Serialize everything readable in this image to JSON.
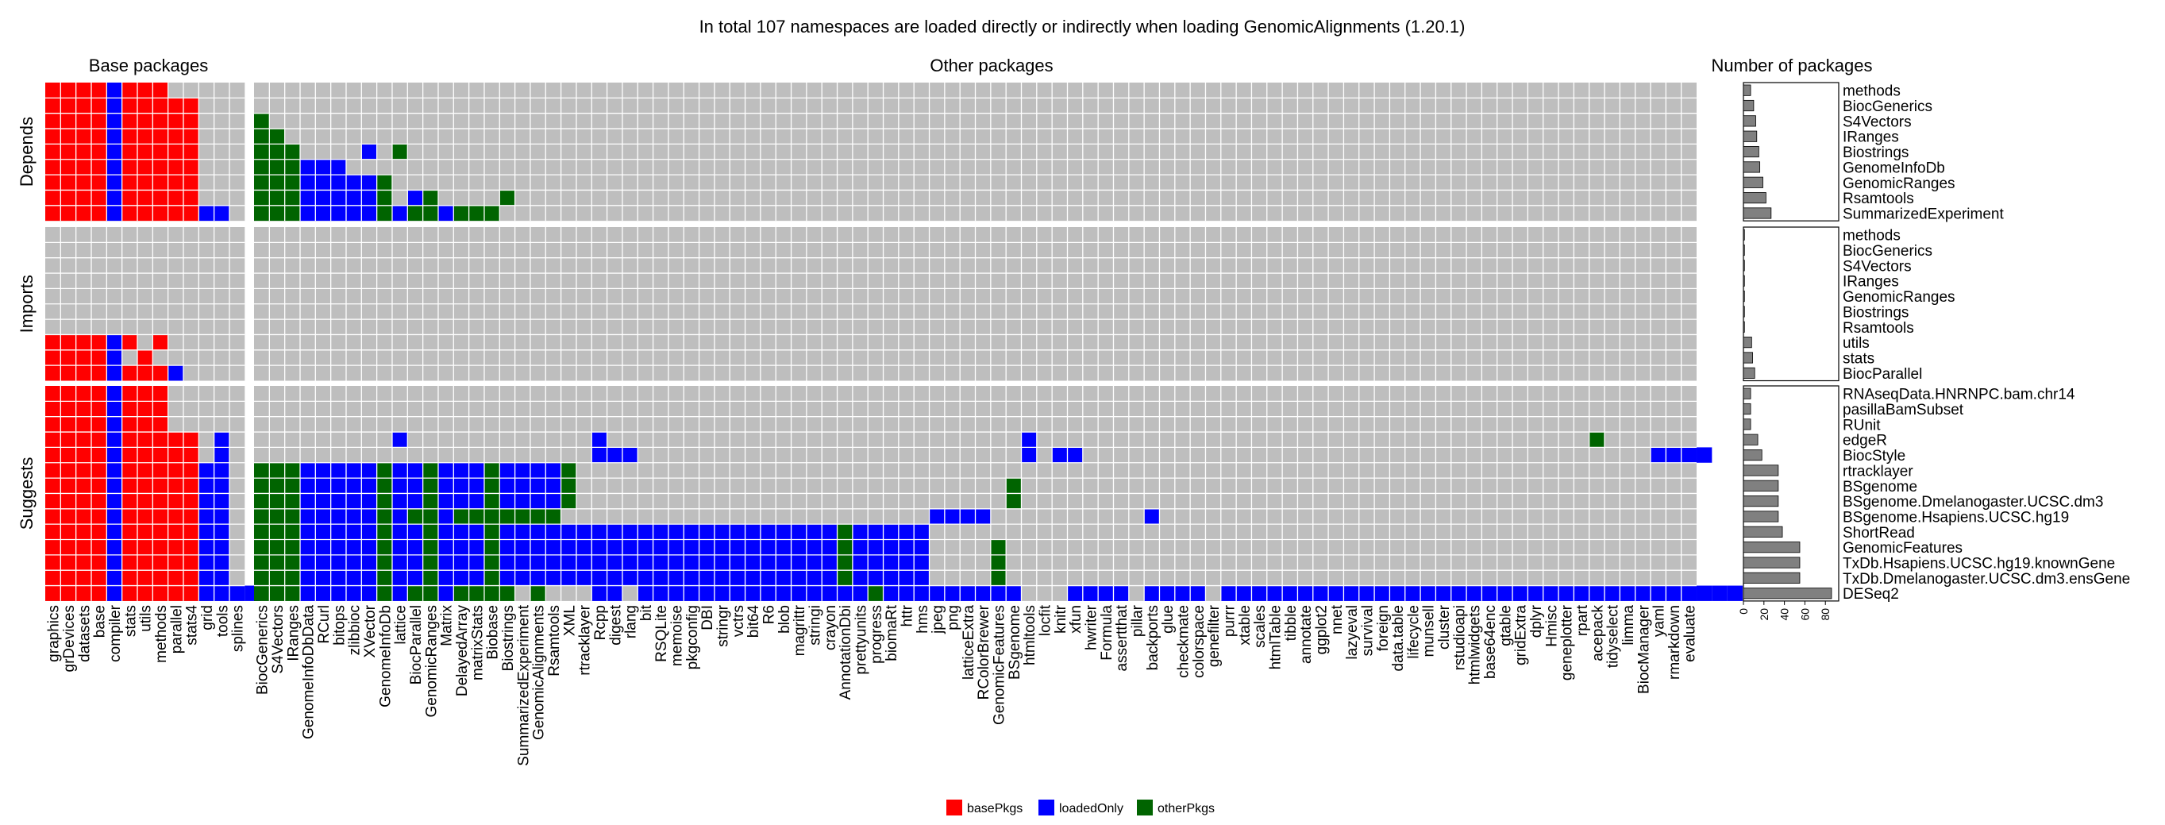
{
  "chart_data": {
    "type": "heatmap",
    "title": "In total 107 namespaces are loaded directly or indirectly when loading GenomicAlignments (1.20.1)",
    "section_titles": {
      "base": "Base packages",
      "other": "Other packages",
      "count": "Number of packages"
    },
    "groups": [
      {
        "name": "Depends",
        "rows": [
          "methods",
          "BiocGenerics",
          "S4Vectors",
          "IRanges",
          "Biostrings",
          "GenomeInfoDb",
          "GenomicRanges",
          "Rsamtools",
          "SummarizedExperiment"
        ]
      },
      {
        "name": "Imports",
        "rows": [
          "methods",
          "BiocGenerics",
          "S4Vectors",
          "IRanges",
          "GenomicRanges",
          "Biostrings",
          "Rsamtools",
          "utils",
          "stats",
          "BiocParallel"
        ]
      },
      {
        "name": "Suggests",
        "rows": [
          "RNAseqData.HNRNPC.bam.chr14",
          "pasillaBamSubset",
          "RUnit",
          "edgeR",
          "BiocStyle",
          "rtracklayer",
          "BSgenome",
          "BSgenome.Dmelanogaster.UCSC.dm3",
          "BSgenome.Hsapiens.UCSC.hg19",
          "ShortRead",
          "GenomicFeatures",
          "TxDb.Hsapiens.UCSC.hg19.knownGene",
          "TxDb.Dmelanogaster.UCSC.dm3.ensGene",
          "DESeq2"
        ]
      }
    ],
    "base_columns": [
      "graphics",
      "grDevices",
      "datasets",
      "base",
      "compiler",
      "stats",
      "utils",
      "methods",
      "parallel",
      "stats4",
      "grid",
      "tools",
      "splines"
    ],
    "other_columns": [
      "BiocGenerics",
      "S4Vectors",
      "IRanges",
      "GenomeInfoDbData",
      "RCurl",
      "bitops",
      "zlibbioc",
      "XVector",
      "GenomeInfoDb",
      "lattice",
      "BiocParallel",
      "GenomicRanges",
      "Matrix",
      "DelayedArray",
      "matrixStats",
      "Biobase",
      "Biostrings",
      "SummarizedExperiment",
      "GenomicAlignments",
      "Rsamtools",
      "XML",
      "rtracklayer",
      "Rcpp",
      "digest",
      "rlang",
      "bit",
      "RSQLite",
      "memoise",
      "pkgconfig",
      "DBI",
      "stringr",
      "vctrs",
      "bit64",
      "R6",
      "blob",
      "magrittr",
      "stringi",
      "crayon",
      "AnnotationDbi",
      "prettyunits",
      "progress",
      "biomaRt",
      "httr",
      "hms",
      "jpeg",
      "png",
      "latticeExtra",
      "RColorBrewer",
      "GenomicFeatures",
      "BSgenome",
      "htmltools",
      "locfit",
      "knitr",
      "xfun",
      "hwriter",
      "Formula",
      "assertthat",
      "pillar",
      "backports",
      "glue",
      "checkmate",
      "colorspace",
      "genefilter",
      "purrr",
      "xtable",
      "scales",
      "htmlTable",
      "tibble",
      "annotate",
      "ggplot2",
      "nnet",
      "lazyeval",
      "survival",
      "foreign",
      "data.table",
      "lifecycle",
      "munsell",
      "cluster",
      "rstudioapi",
      "htmlwidgets",
      "base64enc",
      "gtable",
      "gridExtra",
      "dplyr",
      "Hmisc",
      "geneplotter",
      "rpart",
      "acepack",
      "tidyselect",
      "limma",
      "BiocManager",
      "yaml",
      "rmarkdown",
      "evaluate"
    ],
    "cells": [
      {
        "row": "methods",
        "base": "RRRRBRRR",
        "other": ""
      },
      {
        "row": "BiocGenerics",
        "base": "RRRRBRRRRR",
        "other": ""
      },
      {
        "row": "S4Vectors",
        "base": "RRRRBRRRRR",
        "other": "G"
      },
      {
        "row": "IRanges",
        "base": "RRRRBRRRRR",
        "other": "GG"
      },
      {
        "row": "Biostrings",
        "base": "RRRRBRRRRR",
        "other": "GGG....B.G"
      },
      {
        "row": "GenomeInfoDb",
        "base": "RRRRBRRRRR",
        "other": "GGGBBB"
      },
      {
        "row": "GenomicRanges",
        "base": "RRRRBRRRRR",
        "other": "GGGBBBBBG"
      },
      {
        "row": "Rsamtools",
        "base": "RRRRBRRRRR",
        "other": "GGGBBBBBG.BG....G"
      },
      {
        "row": "SummarizedExperiment",
        "base": "RRRRBRRRRRBB",
        "other": "GGGBBBBBGBGGBGGG"
      },
      {
        "row": "methods",
        "base": "",
        "other": ""
      },
      {
        "row": "BiocGenerics",
        "base": "",
        "other": ""
      },
      {
        "row": "S4Vectors",
        "base": "",
        "other": ""
      },
      {
        "row": "IRanges",
        "base": "",
        "other": ""
      },
      {
        "row": "GenomicRanges",
        "base": "",
        "other": ""
      },
      {
        "row": "Biostrings",
        "base": "",
        "other": ""
      },
      {
        "row": "Rsamtools",
        "base": "",
        "other": ""
      },
      {
        "row": "utils",
        "base": "RRRRBR.R",
        "other": ""
      },
      {
        "row": "stats",
        "base": "RRRRB.R",
        "other": ""
      },
      {
        "row": "BiocParallel",
        "base": "RRRRBRRRB",
        "other": ""
      },
      {
        "row": "RNAseqData.HNRNPC.bam.chr14",
        "base": "RRRRBRRR",
        "other": ""
      },
      {
        "row": "pasillaBamSubset",
        "base": "RRRRBRRR",
        "other": ""
      },
      {
        "row": "RUnit",
        "base": "RRRRBRRR",
        "other": ""
      },
      {
        "row": "edgeR",
        "base": "RRRRBRRRRR.B",
        "other": ".........B............B...........................B....................................G"
      },
      {
        "row": "BiocStyle",
        "base": "RRRRBRRRRR.B",
        "other": "......................BBB.........................B.BB.....................................BBBB"
      },
      {
        "row": "rtracklayer",
        "base": "RRRRBRRRRRBB",
        "other": "GGGBBBBBGBBGBBBGBBBBG"
      },
      {
        "row": "BSgenome",
        "base": "RRRRBRRRRRBB",
        "other": "GGGBBBBBGBBGBBBGBBBBG............................G"
      },
      {
        "row": "BSgenome.Dmelanogaster.UCSC.dm3",
        "base": "RRRRBRRRRRBB",
        "other": "GGGBBBBBGBBGBBBGBBBBG............................G"
      },
      {
        "row": "BSgenome.Hsapiens.UCSC.hg19",
        "base": "RRRRBRRRRRBB",
        "other": "GGGBBBBBGBGGBGGGGGGG........................BBBB..........B"
      },
      {
        "row": "ShortRead",
        "base": "RRRRBRRRRRBB",
        "other": "GGGBBBBBGBBGBBBGBBBBBBBBBBBBBBBBBBBBBBGBBBBB"
      },
      {
        "row": "GenomicFeatures",
        "base": "RRRRBRRRRRBB",
        "other": "GGGBBBBBGBBGBBBGBBBBBBBBBBBBBBBBBBBBBBGBBBBB....G"
      },
      {
        "row": "TxDb.Hsapiens.UCSC.hg19.knownGene",
        "base": "RRRRBRRRRRBB",
        "other": "GGGBBBBBGBBGBBBGBBBBBBBBBBBBBBBBBBBBBBGBBBBB....G"
      },
      {
        "row": "TxDb.Dmelanogaster.UCSC.dm3.ensGene",
        "base": "RRRRBRRRRRBB",
        "other": "GGGBBBBBGBBGBBBGBBBBBBBBBBBBBBBBBBBBBBGBBBBB....G"
      },
      {
        "row": "DESeq2",
        "base": "RRRRBRRRRRBBBB",
        "other": "GGGBBBBBGBGGBGGGG.G...BB.BBBBBBBBBBBBBBBGBBBBBBBBB...BBBB.BBBB.BBBBBBBBBBBBBBBBBBBBBBBBBBBBBBBBBB"
      }
    ],
    "counts": [
      7,
      10,
      12,
      13,
      15,
      16,
      19,
      22,
      27,
      1,
      1,
      1,
      1,
      1,
      1,
      1,
      8,
      9,
      11,
      7,
      7,
      7,
      14,
      18,
      34,
      34,
      34,
      34,
      38,
      55,
      55,
      55,
      86
    ],
    "x_ticks": [
      0,
      20,
      40,
      60,
      80
    ],
    "count_xlim": [
      0,
      93
    ],
    "colors": {
      "basePkgs": "#ff0000",
      "loadedOnly": "#0000ff",
      "otherPkgs": "#006400",
      "empty": "#bebebe",
      "bar": "#808080"
    },
    "legend": [
      {
        "label": "basePkgs",
        "color": "#ff0000"
      },
      {
        "label": "loadedOnly",
        "color": "#0000ff"
      },
      {
        "label": "otherPkgs",
        "color": "#006400"
      }
    ],
    "legend_position": "bottom"
  }
}
